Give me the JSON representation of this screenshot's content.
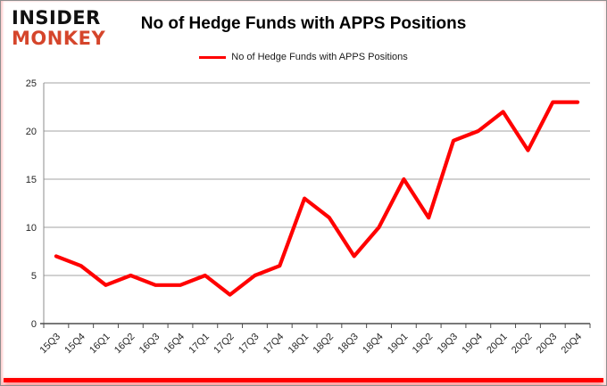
{
  "logo": {
    "line1": "INSIDER",
    "line2": "MONKEY",
    "line1_color": "#111111",
    "line2_color": "#d5452b"
  },
  "header": {
    "title": "No of Hedge Funds with APPS Positions"
  },
  "legend": {
    "label": "No of Hedge Funds with APPS Positions",
    "line_color": "#ff0000"
  },
  "chart_data": {
    "type": "line",
    "title": "No of Hedge Funds with APPS Positions",
    "categories": [
      "15Q3",
      "15Q4",
      "16Q1",
      "16Q2",
      "16Q3",
      "16Q4",
      "17Q1",
      "17Q2",
      "17Q3",
      "17Q4",
      "18Q1",
      "18Q2",
      "18Q3",
      "18Q4",
      "19Q1",
      "19Q2",
      "19Q3",
      "19Q4",
      "20Q1",
      "20Q2",
      "20Q3",
      "20Q4"
    ],
    "series": [
      {
        "name": "No of Hedge Funds with APPS Positions",
        "color": "#ff0000",
        "values": [
          7,
          6,
          4,
          5,
          4,
          4,
          5,
          3,
          5,
          6,
          13,
          11,
          7,
          10,
          15,
          11,
          19,
          20,
          22,
          18,
          23,
          23
        ]
      }
    ],
    "xlabel": "",
    "ylabel": "",
    "ylim": [
      0,
      25
    ],
    "ytick_interval": 5,
    "ytick_labels": [
      "0",
      "5",
      "10",
      "15",
      "20",
      "25"
    ],
    "grid": true,
    "legend_position": "top-center"
  },
  "colors": {
    "line": "#ff0000",
    "gridline": "#a3a3a3",
    "x_axis": "#4d4d4d",
    "y_axis": "#8c8c8c",
    "tick_label": "#262626",
    "accent_bar": "#ff0000"
  }
}
